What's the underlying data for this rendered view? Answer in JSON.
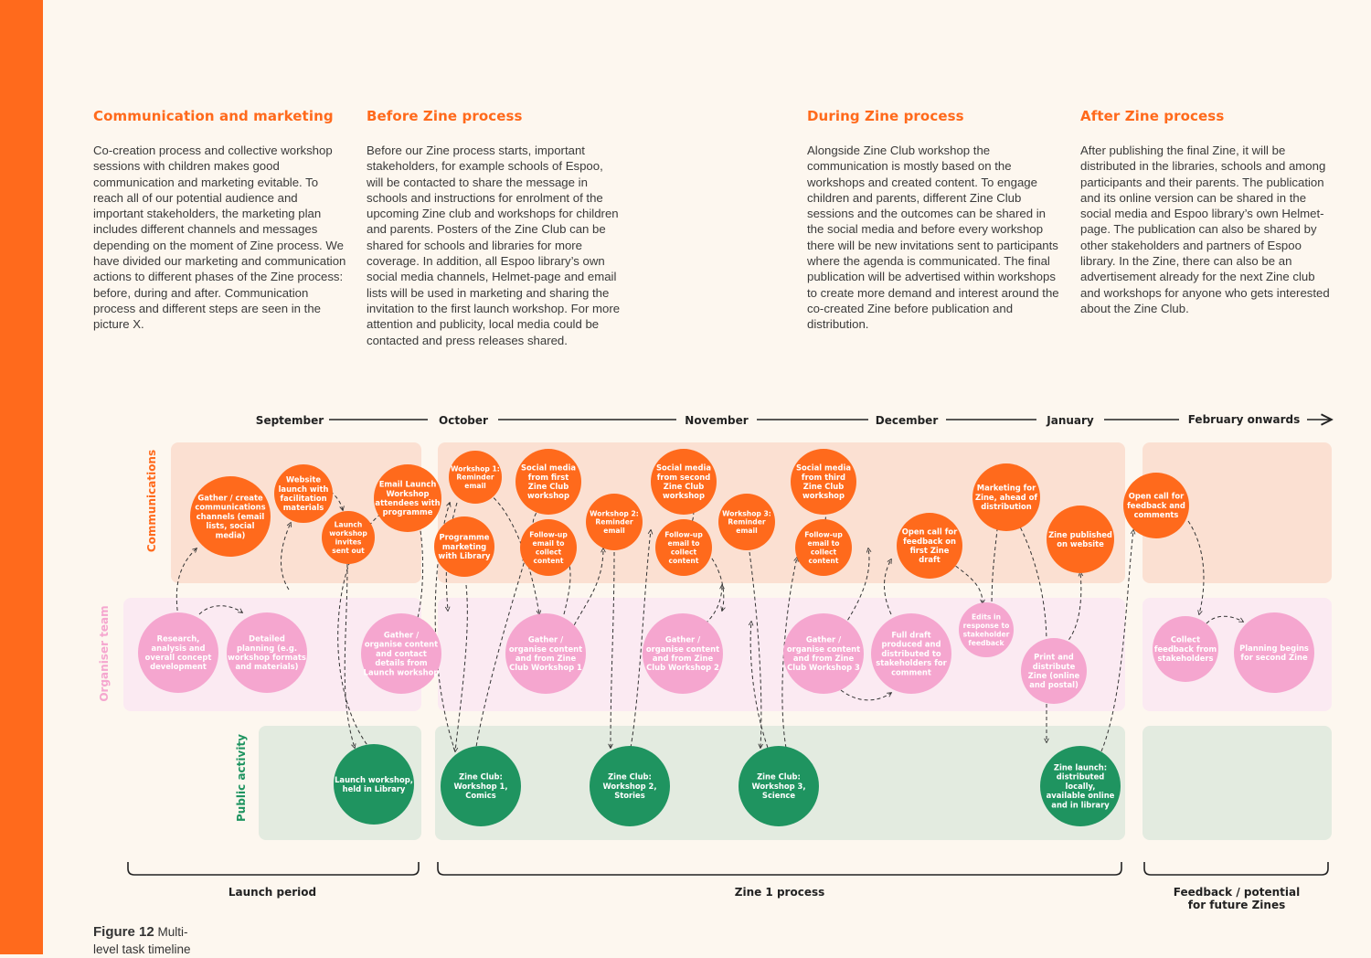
{
  "columns": [
    {
      "title": "Communication and marketing",
      "text": "Co-creation process and collective workshop sessions with children makes good communication and marketing evitable. To reach all of our potential audience and important stakeholders, the marketing plan includes different channels and messages depending on the moment of Zine process. We have divided our marketing and communication actions to different phases of the Zine process: before, during and after. Communication process and different steps are seen in the picture X."
    },
    {
      "title": "Before Zine process",
      "text": "Before our Zine process starts, important stakeholders, for example schools of Espoo, will be contacted to share the message in schools and instructions for enrolment of the upcoming Zine club and workshops for children and parents. Posters of the Zine Club can be shared for schools and libraries for more coverage. In addition, all Espoo library’s own social media channels, Helmet-page and email lists will be used in marketing and sharing the invitation to the first launch workshop. For more attention and publicity, local media could be contacted and press releases shared."
    },
    {
      "title": "During Zine process",
      "text": "Alongside Zine Club workshop the communication is mostly based on the workshops and created content. To engage children and parents, different Zine Club sessions and the outcomes can be shared in the social media and before every workshop there will be new invitations sent to participants where the agenda is communicated. The final publication will be advertised within workshops to create more demand and interest around the co-created Zine before publication and distribution."
    },
    {
      "title": "After Zine process",
      "text": "After publishing the final Zine, it will be distributed in the libraries, schools and among participants and their parents. The publication and its online version can be shared in the social media and Espoo library’s own Helmet-page. The publication can also be shared by other stakeholders and partners of Espoo library. In the Zine, there can also be an advertisement already for the next Zine club and workshops for anyone who gets interested about the Zine Club."
    }
  ],
  "months": [
    "September",
    "October",
    "November",
    "December",
    "January",
    "February onwards"
  ],
  "lanes": [
    "Communications",
    "Organiser team",
    "Public activity"
  ],
  "periods": [
    "Launch period",
    "Zine 1 process",
    "Feedback / potential\nfor future Zines"
  ],
  "figure": {
    "label": "Figure 12",
    "caption": "Multi-level task timeline"
  },
  "colors": {
    "orange": "#ff6a1c",
    "pink": "#f5a6cf",
    "green": "#1f9460",
    "comm_bg": "#fbe0d2",
    "org_bg": "#fbeaf2",
    "pub_bg": "#e3ebe0",
    "page_bg": "#fdf7ef"
  },
  "nodes": {
    "comm": [
      {
        "id": "gather-channels",
        "text": "Gather / create communications channels (email lists, social media)"
      },
      {
        "id": "website-launch",
        "text": "Website launch with facilitation materials"
      },
      {
        "id": "launch-invites",
        "text": "Launch workshop invites sent out"
      },
      {
        "id": "email-launch",
        "text": "Email Launch Workshop attendees with programme"
      },
      {
        "id": "w1-reminder",
        "text": "Workshop 1: Reminder email"
      },
      {
        "id": "programme-marketing",
        "text": "Programme marketing with Library"
      },
      {
        "id": "social-first",
        "text": "Social media from first Zine Club workshop"
      },
      {
        "id": "followup-1",
        "text": "Follow-up email to collect content"
      },
      {
        "id": "w2-reminder",
        "text": "Workshop 2: Reminder email"
      },
      {
        "id": "social-second",
        "text": "Social media from second Zine Club workshop"
      },
      {
        "id": "followup-2",
        "text": "Follow-up email to collect content"
      },
      {
        "id": "w3-reminder",
        "text": "Workshop 3: Reminder email"
      },
      {
        "id": "social-third",
        "text": "Social media from third Zine Club workshop"
      },
      {
        "id": "followup-3",
        "text": "Follow-up email to collect content"
      },
      {
        "id": "open-call-draft",
        "text": "Open call for feedback on first Zine draft"
      },
      {
        "id": "marketing-zine",
        "text": "Marketing for Zine, ahead of distribution"
      },
      {
        "id": "zine-website",
        "text": "Zine published on website"
      },
      {
        "id": "open-call-comments",
        "text": "Open call for feedback and comments"
      }
    ],
    "org": [
      {
        "id": "research",
        "text": "Research, analysis and overall concept development"
      },
      {
        "id": "detailed-planning",
        "text": "Detailed planning (e.g. workshop formats and materials)"
      },
      {
        "id": "gather-launch",
        "text": "Gather / organise content and contact details from Launch workshop"
      },
      {
        "id": "gather-w1",
        "text": "Gather / organise content and from Zine Club Workshop 1"
      },
      {
        "id": "gather-w2",
        "text": "Gather / organise content and from Zine Club Workshop 2"
      },
      {
        "id": "gather-w3",
        "text": "Gather / organise content and from Zine Club Workshop 3"
      },
      {
        "id": "full-draft",
        "text": "Full draft produced and distributed to stakeholders for comment"
      },
      {
        "id": "edits",
        "text": "Edits in response to stakeholder feedback"
      },
      {
        "id": "print",
        "text": "Print and distribute Zine (online and postal)"
      },
      {
        "id": "collect-feedback",
        "text": "Collect feedback from stakeholders"
      },
      {
        "id": "planning-second",
        "text": "Planning begins for second Zine"
      }
    ],
    "pub": [
      {
        "id": "launch-workshop",
        "text": "Launch workshop, held in Library"
      },
      {
        "id": "zc-w1",
        "text": "Zine Club: Workshop 1, Comics"
      },
      {
        "id": "zc-w2",
        "text": "Zine Club: Workshop 2, Stories"
      },
      {
        "id": "zc-w3",
        "text": "Zine Club: Workshop 3, Science"
      },
      {
        "id": "zine-launch",
        "text": "Zine launch: distributed locally, available online and in library"
      }
    ]
  }
}
